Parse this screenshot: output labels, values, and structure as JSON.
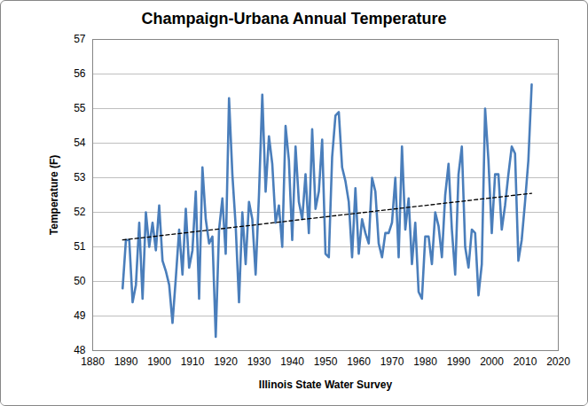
{
  "chart_data": {
    "type": "line",
    "title": "Champaign-Urbana Annual Temperature",
    "x_label": "Illinois State Water Survey",
    "y_label": "Temperature (F)",
    "x": [
      1889,
      1890,
      1891,
      1892,
      1893,
      1894,
      1895,
      1896,
      1897,
      1898,
      1899,
      1900,
      1901,
      1902,
      1903,
      1904,
      1905,
      1906,
      1907,
      1908,
      1909,
      1910,
      1911,
      1912,
      1913,
      1914,
      1915,
      1916,
      1917,
      1918,
      1919,
      1920,
      1921,
      1922,
      1923,
      1924,
      1925,
      1926,
      1927,
      1928,
      1929,
      1930,
      1931,
      1932,
      1933,
      1934,
      1935,
      1936,
      1937,
      1938,
      1939,
      1940,
      1941,
      1942,
      1943,
      1944,
      1945,
      1946,
      1947,
      1948,
      1949,
      1950,
      1951,
      1952,
      1953,
      1954,
      1955,
      1956,
      1957,
      1958,
      1959,
      1960,
      1961,
      1962,
      1963,
      1964,
      1965,
      1966,
      1967,
      1968,
      1969,
      1970,
      1971,
      1972,
      1973,
      1974,
      1975,
      1976,
      1977,
      1978,
      1979,
      1980,
      1981,
      1982,
      1983,
      1984,
      1985,
      1986,
      1987,
      1988,
      1989,
      1990,
      1991,
      1992,
      1993,
      1994,
      1995,
      1996,
      1997,
      1998,
      1999,
      2000,
      2001,
      2002,
      2003,
      2004,
      2005,
      2006,
      2007,
      2008,
      2009,
      2010,
      2011,
      2012
    ],
    "series": [
      {
        "color": "#4a7ebb",
        "line_style": "solid",
        "values": [
          49.8,
          51.2,
          51.2,
          49.4,
          49.9,
          51.7,
          49.5,
          52.0,
          51.0,
          51.7,
          50.9,
          52.2,
          50.6,
          50.3,
          49.9,
          48.8,
          50.1,
          51.5,
          50.2,
          52.1,
          50.4,
          50.9,
          52.6,
          49.5,
          53.3,
          51.8,
          51.1,
          51.3,
          48.4,
          51.5,
          52.4,
          50.8,
          55.3,
          53.1,
          51.6,
          49.4,
          52.0,
          50.5,
          52.3,
          51.8,
          50.2,
          52.5,
          55.4,
          52.6,
          54.2,
          53.4,
          51.7,
          52.2,
          51.0,
          54.5,
          53.5,
          51.2,
          53.9,
          52.3,
          51.8,
          53.1,
          51.4,
          54.4,
          52.1,
          52.6,
          54.1,
          50.8,
          50.7,
          53.6,
          54.8,
          54.9,
          53.3,
          52.9,
          52.3,
          50.7,
          52.7,
          50.8,
          51.8,
          51.4,
          51.1,
          53.0,
          52.6,
          51.1,
          50.7,
          51.4,
          51.4,
          51.7,
          53.0,
          50.7,
          53.9,
          51.5,
          52.4,
          50.5,
          51.7,
          49.7,
          49.5,
          51.3,
          51.3,
          50.5,
          52.0,
          51.6,
          50.7,
          52.5,
          53.4,
          51.5,
          50.2,
          53.1,
          53.9,
          51.0,
          50.4,
          51.5,
          51.4,
          49.6,
          50.5,
          55.0,
          53.5,
          51.4,
          53.1,
          53.1,
          51.5,
          52.2,
          53.1,
          53.9,
          53.7,
          50.6,
          51.2,
          52.3,
          53.5,
          55.7
        ]
      },
      {
        "color": "#000000",
        "line_style": "dashed",
        "x": [
          1889,
          2012
        ],
        "values": [
          51.2,
          52.55
        ]
      }
    ],
    "xlim": [
      1880,
      2020
    ],
    "xticks": [
      1880,
      1890,
      1900,
      1910,
      1920,
      1930,
      1940,
      1950,
      1960,
      1970,
      1980,
      1990,
      2000,
      2010,
      2020
    ],
    "ylim": [
      48,
      57
    ],
    "yticks": [
      48,
      49,
      50,
      51,
      52,
      53,
      54,
      55,
      56,
      57
    ],
    "grid": true
  }
}
